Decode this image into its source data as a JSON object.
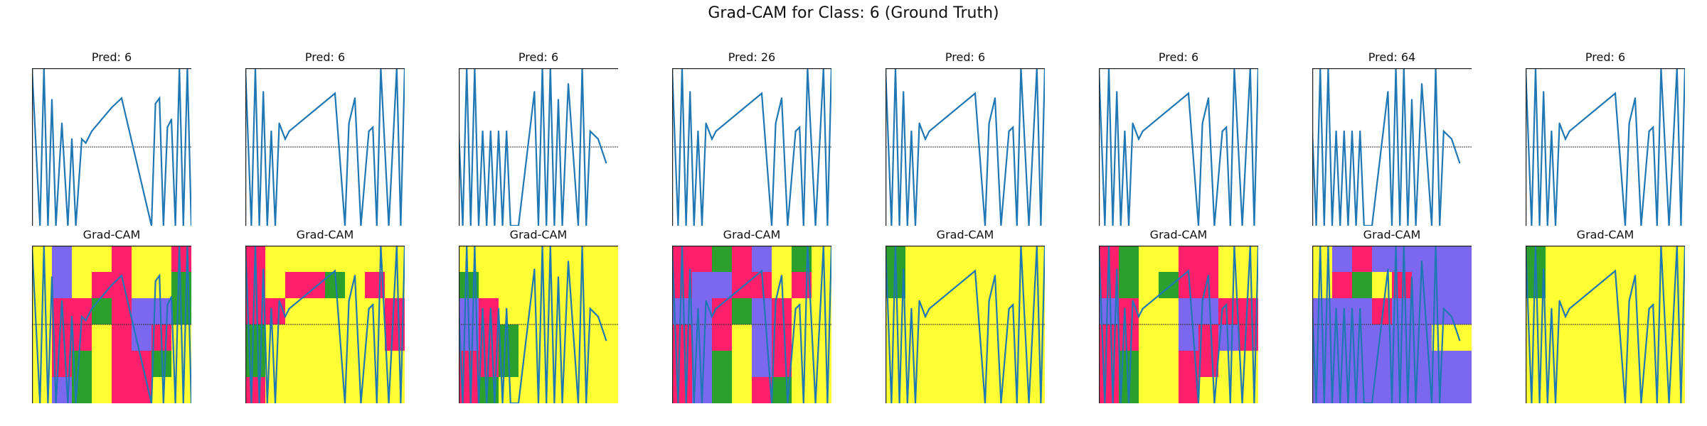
{
  "figure": {
    "title": "Grad-CAM for Class: 6 (Ground Truth)"
  },
  "colors": {
    "line": "#1f77b4",
    "heat_low": "#ffff33",
    "heat_mid": "#2ca02c",
    "heat_high": "#ff1f6a",
    "heat_peak": "#7b68ee",
    "ref_line": "#333333"
  },
  "chart_data": {
    "type": "line",
    "columns": [
      {
        "pred_label": "Pred: 6",
        "cam_label": "Grad-CAM",
        "x": [
          0,
          4,
          6,
          8,
          10,
          12,
          15,
          18,
          20,
          22,
          25,
          27,
          30,
          35,
          40,
          45,
          60,
          62,
          64,
          66,
          68,
          70,
          72,
          74,
          76,
          78,
          80
        ],
        "y": [
          1.0,
          -1.0,
          1.0,
          -1.0,
          0.6,
          -1.0,
          0.3,
          -1.0,
          0.1,
          -1.0,
          0.1,
          0.05,
          0.2,
          0.35,
          0.5,
          0.62,
          -1.0,
          0.55,
          0.62,
          -1.0,
          0.25,
          0.35,
          -1.0,
          1.0,
          -1.0,
          1.0,
          -1.0
        ],
        "heat": [
          [
            0.2,
            0.9,
            0.3,
            0.2,
            0.6,
            0.2,
            0.2,
            0.7
          ],
          [
            0.1,
            0.9,
            0.2,
            0.8,
            0.8,
            0.2,
            0.3,
            0.4
          ],
          [
            0.2,
            0.8,
            0.7,
            0.4,
            0.8,
            0.9,
            0.9,
            0.5
          ],
          [
            0.3,
            0.7,
            0.8,
            0.2,
            0.7,
            0.9,
            0.8,
            0.2
          ],
          [
            0.1,
            0.8,
            0.5,
            0.2,
            0.8,
            0.8,
            0.4,
            0.1
          ],
          [
            0.2,
            0.9,
            0.4,
            0.2,
            0.7,
            0.7,
            0.2,
            0.1
          ]
        ]
      },
      {
        "pred_label": "Pred: 6",
        "cam_label": "Grad-CAM",
        "x": [
          0,
          3,
          5,
          7,
          9,
          11,
          13,
          15,
          17,
          20,
          22,
          45,
          50,
          52,
          55,
          58,
          62,
          64,
          66,
          68,
          72,
          76,
          78,
          80
        ],
        "y": [
          1.0,
          -1.0,
          1.0,
          -1.0,
          0.7,
          -1.0,
          0.2,
          -1.0,
          0.3,
          0.1,
          0.2,
          0.68,
          -1.0,
          0.3,
          0.62,
          -1.0,
          0.2,
          0.25,
          -1.0,
          1.0,
          -1.0,
          1.0,
          -1.0,
          1.0
        ],
        "heat": [
          [
            0.6,
            0.3,
            0.2,
            0.2,
            0.2,
            0.2,
            0.2,
            0.1
          ],
          [
            0.8,
            0.2,
            0.6,
            0.8,
            0.5,
            0.2,
            0.6,
            0.1
          ],
          [
            0.7,
            0.6,
            0.2,
            0.2,
            0.2,
            0.2,
            0.2,
            0.6
          ],
          [
            0.5,
            0.2,
            0.2,
            0.2,
            0.2,
            0.3,
            0.2,
            0.6
          ],
          [
            0.4,
            0.2,
            0.2,
            0.2,
            0.2,
            0.2,
            0.2,
            0.1
          ],
          [
            0.6,
            0.2,
            0.2,
            0.2,
            0.2,
            0.2,
            0.2,
            0.1
          ]
        ]
      },
      {
        "pred_label": "Pred: 6",
        "cam_label": "Grad-CAM",
        "x": [
          0,
          2,
          4,
          6,
          8,
          10,
          12,
          14,
          16,
          18,
          20,
          22,
          24,
          26,
          30,
          38,
          40,
          42,
          44,
          46,
          48,
          50,
          52,
          55,
          60,
          62,
          64,
          66,
          70,
          74
        ],
        "y": [
          0.2,
          -1.0,
          1.0,
          -1.0,
          1.0,
          -1.0,
          0.2,
          -1.0,
          0.2,
          -1.0,
          0.2,
          -1.0,
          0.2,
          -1.0,
          -1.0,
          0.7,
          -1.0,
          1.0,
          -1.0,
          1.0,
          -1.0,
          0.6,
          -1.0,
          0.8,
          -1.0,
          1.0,
          -1.0,
          0.2,
          0.1,
          -0.2
        ],
        "heat": [
          [
            0.3,
            0.2,
            0.2,
            0.2,
            0.2,
            0.2,
            0.2,
            0.2
          ],
          [
            0.5,
            0.2,
            0.2,
            0.2,
            0.2,
            0.2,
            0.2,
            0.2
          ],
          [
            0.9,
            0.8,
            0.3,
            0.2,
            0.2,
            0.2,
            0.2,
            0.2
          ],
          [
            0.9,
            0.7,
            0.5,
            0.2,
            0.2,
            0.2,
            0.2,
            0.2
          ],
          [
            0.8,
            0.6,
            0.5,
            0.2,
            0.2,
            0.2,
            0.2,
            0.2
          ],
          [
            0.8,
            0.5,
            0.3,
            0.2,
            0.2,
            0.2,
            0.2,
            0.2
          ]
        ]
      },
      {
        "pred_label": "Pred: 26",
        "cam_label": "Grad-CAM",
        "x": [
          0,
          3,
          5,
          7,
          9,
          11,
          13,
          15,
          17,
          20,
          22,
          45,
          50,
          52,
          55,
          58,
          62,
          64,
          66,
          68,
          72,
          76,
          78,
          80
        ],
        "y": [
          1.0,
          -1.0,
          1.0,
          -1.0,
          0.7,
          -1.0,
          0.2,
          -1.0,
          0.3,
          0.1,
          0.2,
          0.68,
          -1.0,
          0.3,
          0.62,
          -1.0,
          0.2,
          0.25,
          -1.0,
          1.0,
          -1.0,
          1.0,
          -1.0,
          1.0
        ],
        "heat": [
          [
            0.6,
            0.8,
            0.4,
            0.7,
            0.9,
            0.2,
            0.5,
            0.3
          ],
          [
            0.8,
            0.9,
            0.9,
            0.6,
            0.8,
            0.3,
            0.6,
            0.2
          ],
          [
            0.9,
            0.9,
            0.7,
            0.5,
            0.9,
            0.8,
            0.2,
            0.2
          ],
          [
            0.8,
            0.9,
            0.6,
            0.2,
            0.9,
            0.7,
            0.2,
            0.1
          ],
          [
            0.7,
            0.9,
            0.5,
            0.2,
            0.9,
            0.6,
            0.2,
            0.1
          ],
          [
            0.6,
            0.9,
            0.5,
            0.2,
            0.8,
            0.4,
            0.2,
            0.1
          ]
        ]
      },
      {
        "pred_label": "Pred: 6",
        "cam_label": "Grad-CAM",
        "x": [
          0,
          3,
          5,
          7,
          9,
          11,
          13,
          15,
          17,
          20,
          22,
          45,
          50,
          52,
          55,
          58,
          62,
          64,
          66,
          68,
          72,
          76,
          78,
          80
        ],
        "y": [
          1.0,
          -1.0,
          1.0,
          -1.0,
          0.7,
          -1.0,
          0.2,
          -1.0,
          0.3,
          0.1,
          0.2,
          0.68,
          -1.0,
          0.3,
          0.62,
          -1.0,
          0.2,
          0.25,
          -1.0,
          1.0,
          -1.0,
          1.0,
          -1.0,
          1.0
        ],
        "heat": [
          [
            0.5,
            0.2,
            0.2,
            0.2,
            0.2,
            0.2,
            0.2,
            0.2
          ],
          [
            0.4,
            0.2,
            0.2,
            0.2,
            0.2,
            0.2,
            0.2,
            0.2
          ],
          [
            0.3,
            0.2,
            0.2,
            0.2,
            0.2,
            0.2,
            0.2,
            0.2
          ],
          [
            0.2,
            0.2,
            0.2,
            0.2,
            0.2,
            0.2,
            0.2,
            0.2
          ],
          [
            0.2,
            0.2,
            0.2,
            0.2,
            0.2,
            0.2,
            0.2,
            0.2
          ],
          [
            0.3,
            0.2,
            0.2,
            0.2,
            0.2,
            0.2,
            0.2,
            0.2
          ]
        ]
      },
      {
        "pred_label": "Pred: 6",
        "cam_label": "Grad-CAM",
        "x": [
          0,
          3,
          5,
          7,
          9,
          11,
          13,
          15,
          17,
          20,
          22,
          45,
          50,
          52,
          55,
          58,
          62,
          64,
          66,
          68,
          72,
          76,
          78,
          80
        ],
        "y": [
          1.0,
          -1.0,
          1.0,
          -1.0,
          0.7,
          -1.0,
          0.2,
          -1.0,
          0.3,
          0.1,
          0.2,
          0.68,
          -1.0,
          0.3,
          0.62,
          -1.0,
          0.2,
          0.25,
          -1.0,
          1.0,
          -1.0,
          1.0,
          -1.0,
          1.0
        ],
        "heat": [
          [
            0.6,
            0.4,
            0.3,
            0.2,
            0.6,
            0.7,
            0.2,
            0.2
          ],
          [
            0.8,
            0.5,
            0.2,
            0.4,
            0.8,
            0.6,
            0.2,
            0.2
          ],
          [
            0.9,
            0.8,
            0.3,
            0.2,
            0.9,
            0.9,
            0.8,
            0.7
          ],
          [
            0.8,
            0.6,
            0.2,
            0.2,
            0.9,
            0.8,
            0.9,
            0.8
          ],
          [
            0.8,
            0.5,
            0.2,
            0.2,
            0.8,
            0.6,
            0.3,
            0.2
          ],
          [
            0.7,
            0.5,
            0.2,
            0.2,
            0.7,
            0.3,
            0.2,
            0.2
          ]
        ]
      },
      {
        "pred_label": "Pred: 64",
        "cam_label": "Grad-CAM",
        "x": [
          0,
          2,
          4,
          6,
          8,
          10,
          12,
          14,
          16,
          18,
          20,
          22,
          24,
          26,
          30,
          38,
          40,
          42,
          44,
          46,
          48,
          50,
          52,
          55,
          60,
          62,
          64,
          66,
          70,
          74
        ],
        "y": [
          0.2,
          -1.0,
          1.0,
          -1.0,
          1.0,
          -1.0,
          0.2,
          -1.0,
          0.2,
          -1.0,
          0.2,
          -1.0,
          0.2,
          -1.0,
          -1.0,
          0.7,
          -1.0,
          1.0,
          -1.0,
          1.0,
          -1.0,
          0.6,
          -1.0,
          0.8,
          -1.0,
          1.0,
          -1.0,
          0.2,
          0.1,
          -0.2
        ],
        "heat": [
          [
            0.3,
            0.9,
            0.8,
            0.9,
            0.9,
            0.9,
            0.9,
            0.9
          ],
          [
            0.3,
            0.8,
            0.5,
            0.3,
            0.8,
            0.9,
            0.9,
            0.9
          ],
          [
            0.9,
            0.9,
            0.9,
            0.8,
            0.9,
            0.9,
            0.9,
            0.9
          ],
          [
            0.9,
            0.9,
            0.9,
            0.9,
            0.9,
            0.9,
            0.2,
            0.2
          ],
          [
            0.9,
            0.9,
            0.9,
            0.9,
            0.9,
            0.9,
            0.9,
            0.9
          ],
          [
            0.9,
            0.9,
            0.9,
            0.9,
            0.9,
            0.9,
            0.9,
            0.9
          ]
        ]
      },
      {
        "pred_label": "Pred: 6",
        "cam_label": "Grad-CAM",
        "x": [
          0,
          3,
          5,
          7,
          9,
          11,
          13,
          15,
          17,
          20,
          22,
          45,
          50,
          52,
          55,
          58,
          62,
          64,
          66,
          68,
          72,
          76,
          78,
          80
        ],
        "y": [
          1.0,
          -1.0,
          1.0,
          -1.0,
          0.7,
          -1.0,
          0.2,
          -1.0,
          0.3,
          0.1,
          0.2,
          0.68,
          -1.0,
          0.3,
          0.62,
          -1.0,
          0.2,
          0.25,
          -1.0,
          1.0,
          -1.0,
          1.0,
          -1.0,
          1.0
        ],
        "heat": [
          [
            0.5,
            0.2,
            0.2,
            0.2,
            0.2,
            0.2,
            0.2,
            0.2
          ],
          [
            0.4,
            0.2,
            0.2,
            0.2,
            0.2,
            0.2,
            0.2,
            0.2
          ],
          [
            0.3,
            0.2,
            0.2,
            0.2,
            0.2,
            0.2,
            0.2,
            0.2
          ],
          [
            0.2,
            0.2,
            0.2,
            0.2,
            0.2,
            0.2,
            0.2,
            0.2
          ],
          [
            0.2,
            0.2,
            0.2,
            0.2,
            0.2,
            0.2,
            0.2,
            0.2
          ],
          [
            0.3,
            0.2,
            0.2,
            0.2,
            0.2,
            0.2,
            0.2,
            0.2
          ]
        ]
      }
    ],
    "xlim": [
      0,
      80
    ],
    "ylim": [
      -1.0,
      1.0
    ],
    "reference_line_y": 0,
    "grid": false
  }
}
